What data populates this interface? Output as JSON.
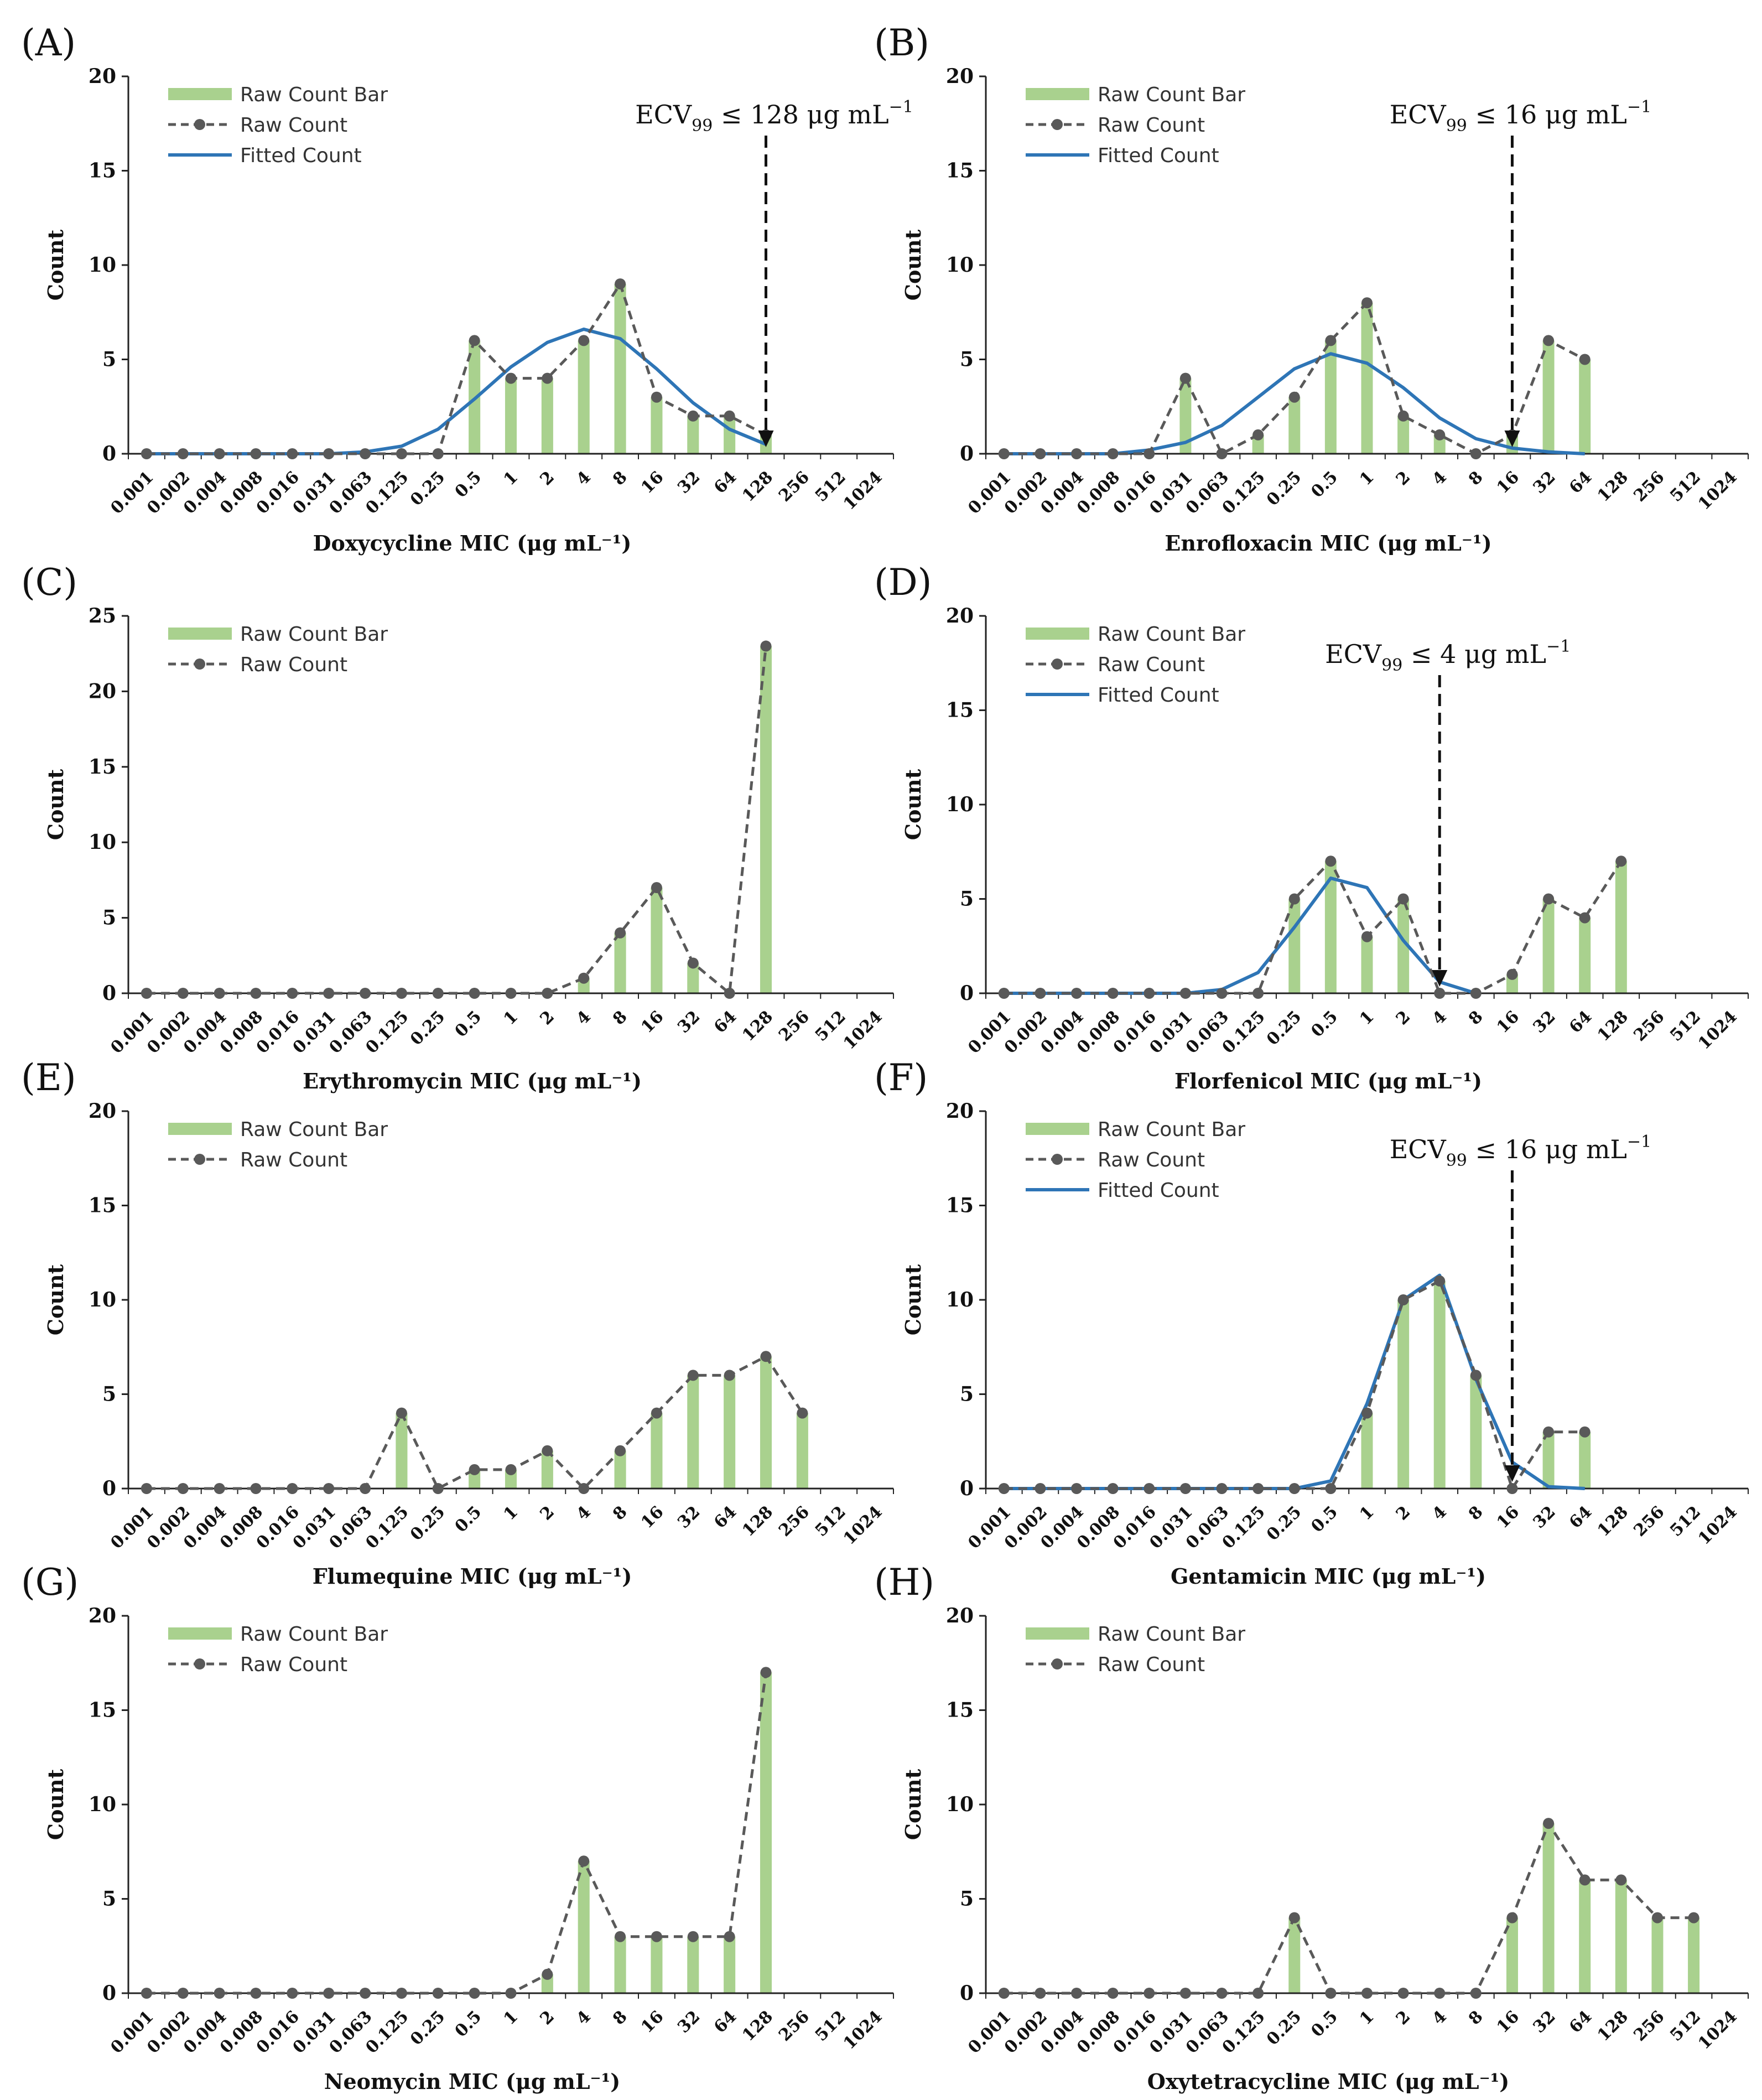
{
  "figure": {
    "x_categories": [
      "0.001",
      "0.002",
      "0.004",
      "0.008",
      "0.016",
      "0.031",
      "0.063",
      "0.125",
      "0.25",
      "0.5",
      "1",
      "2",
      "4",
      "8",
      "16",
      "32",
      "64",
      "128",
      "256",
      "512",
      "1024"
    ],
    "colors": {
      "bar": "#a9d18e",
      "raw": "#595959",
      "fitted": "#2e75b6",
      "axis": "#222222"
    }
  },
  "chart_data": [
    {
      "type": "bar",
      "panel_label": "(A)",
      "xlabel": "Doxycycline MIC (μg mL⁻¹)",
      "ylabel": "Count",
      "ylim": [
        0,
        20
      ],
      "yticks": [
        0,
        5,
        10,
        15,
        20
      ],
      "legend": [
        "Raw Count Bar",
        "Raw Count",
        "Fitted Count"
      ],
      "bar_values": [
        0,
        0,
        0,
        0,
        0,
        0,
        0,
        0,
        0,
        6,
        4,
        4,
        6,
        9,
        3,
        2,
        2,
        1,
        null,
        null,
        null
      ],
      "raw_count": [
        0,
        0,
        0,
        0,
        0,
        0,
        0,
        0,
        0,
        6,
        4,
        4,
        6,
        9,
        3,
        2,
        2,
        1,
        null,
        null,
        null
      ],
      "fitted_count": [
        0,
        0,
        0,
        0,
        0,
        0,
        0.1,
        0.4,
        1.3,
        2.9,
        4.6,
        5.9,
        6.6,
        6.1,
        4.5,
        2.7,
        1.3,
        0.5,
        null,
        null,
        null
      ],
      "ecv": {
        "prefix": "ECV",
        "sub": "99",
        "rel": " ≤ 128 μg mL",
        "sup": "−1",
        "category_index": 17,
        "value": 128
      }
    },
    {
      "type": "bar",
      "panel_label": "(B)",
      "xlabel": "Enrofloxacin MIC (μg mL⁻¹)",
      "ylabel": "Count",
      "ylim": [
        0,
        20
      ],
      "yticks": [
        0,
        5,
        10,
        15,
        20
      ],
      "legend": [
        "Raw Count Bar",
        "Raw Count",
        "Fitted Count"
      ],
      "bar_values": [
        0,
        0,
        0,
        0,
        0,
        4,
        0,
        1,
        3,
        6,
        8,
        2,
        1,
        0,
        1,
        6,
        5,
        null,
        null,
        null,
        null
      ],
      "raw_count": [
        0,
        0,
        0,
        0,
        0,
        4,
        0,
        1,
        3,
        6,
        8,
        2,
        1,
        0,
        1,
        6,
        5,
        null,
        null,
        null,
        null
      ],
      "fitted_count": [
        0,
        0,
        0,
        0,
        0.2,
        0.6,
        1.5,
        3,
        4.5,
        5.3,
        4.8,
        3.5,
        1.9,
        0.8,
        0.3,
        0.1,
        0,
        null,
        null,
        null,
        null
      ],
      "ecv": {
        "prefix": "ECV",
        "sub": "99",
        "rel": " ≤ 16 μg mL",
        "sup": "−1",
        "category_index": 14,
        "value": 16
      }
    },
    {
      "type": "bar",
      "panel_label": "(C)",
      "xlabel": "Erythromycin MIC (μg mL⁻¹)",
      "ylabel": "Count",
      "ylim": [
        0,
        25
      ],
      "yticks": [
        0,
        5,
        10,
        15,
        20,
        25
      ],
      "legend": [
        "Raw Count Bar",
        "Raw Count"
      ],
      "bar_values": [
        0,
        0,
        0,
        0,
        0,
        0,
        0,
        0,
        0,
        0,
        0,
        0,
        1,
        4,
        7,
        2,
        0,
        23,
        null,
        null,
        null
      ],
      "raw_count": [
        0,
        0,
        0,
        0,
        0,
        0,
        0,
        0,
        0,
        0,
        0,
        0,
        1,
        4,
        7,
        2,
        0,
        23,
        null,
        null,
        null
      ],
      "fitted_count": null,
      "ecv": null
    },
    {
      "type": "bar",
      "panel_label": "(D)",
      "xlabel": "Florfenicol MIC (μg mL⁻¹)",
      "ylabel": "Count",
      "ylim": [
        0,
        20
      ],
      "yticks": [
        0,
        5,
        10,
        15,
        20
      ],
      "legend": [
        "Raw Count Bar",
        "Raw Count",
        "Fitted Count"
      ],
      "bar_values": [
        0,
        0,
        0,
        0,
        0,
        0,
        0,
        0,
        5,
        7,
        3,
        5,
        0,
        0,
        1,
        5,
        4,
        7,
        null,
        null,
        null
      ],
      "raw_count": [
        0,
        0,
        0,
        0,
        0,
        0,
        0,
        0,
        5,
        7,
        3,
        5,
        0,
        0,
        1,
        5,
        4,
        7,
        null,
        null,
        null
      ],
      "fitted_count": [
        0,
        0,
        0,
        0,
        0,
        0,
        0.2,
        1.1,
        3.5,
        6.1,
        5.6,
        2.8,
        0.6,
        0,
        null,
        null,
        null,
        null,
        null,
        null,
        null
      ],
      "ecv": {
        "prefix": "ECV",
        "sub": "99",
        "rel": " ≤ 4 μg mL",
        "sup": "−1",
        "category_index": 12,
        "value": 4
      }
    },
    {
      "type": "bar",
      "panel_label": "(E)",
      "xlabel": "Flumequine MIC (μg mL⁻¹)",
      "ylabel": "Count",
      "ylim": [
        0,
        20
      ],
      "yticks": [
        0,
        5,
        10,
        15,
        20
      ],
      "legend": [
        "Raw Count Bar",
        "Raw Count"
      ],
      "bar_values": [
        0,
        0,
        0,
        0,
        0,
        0,
        0,
        4,
        0,
        1,
        1,
        2,
        0,
        2,
        4,
        6,
        6,
        7,
        4,
        null,
        null
      ],
      "raw_count": [
        0,
        0,
        0,
        0,
        0,
        0,
        0,
        4,
        0,
        1,
        1,
        2,
        0,
        2,
        4,
        6,
        6,
        7,
        4,
        null,
        null
      ],
      "fitted_count": null,
      "ecv": null
    },
    {
      "type": "bar",
      "panel_label": "(F)",
      "xlabel": "Gentamicin MIC (μg mL⁻¹)",
      "ylabel": "Count",
      "ylim": [
        0,
        20
      ],
      "yticks": [
        0,
        5,
        10,
        15,
        20
      ],
      "legend": [
        "Raw Count Bar",
        "Raw Count",
        "Fitted Count"
      ],
      "bar_values": [
        0,
        0,
        0,
        0,
        0,
        0,
        0,
        0,
        0,
        0,
        4,
        10,
        11,
        6,
        0,
        3,
        3,
        null,
        null,
        null,
        null
      ],
      "raw_count": [
        0,
        0,
        0,
        0,
        0,
        0,
        0,
        0,
        0,
        0,
        4,
        10,
        11,
        6,
        0,
        3,
        3,
        null,
        null,
        null,
        null
      ],
      "fitted_count": [
        0,
        0,
        0,
        0,
        0,
        0,
        0,
        0,
        0,
        0.4,
        4.5,
        10,
        11.3,
        5.8,
        1.4,
        0.1,
        0,
        null,
        null,
        null,
        null
      ],
      "ecv": {
        "prefix": "ECV",
        "sub": "99",
        "rel": " ≤ 16 μg mL",
        "sup": "−1",
        "category_index": 14,
        "value": 16
      }
    },
    {
      "type": "bar",
      "panel_label": "(G)",
      "xlabel": "Neomycin MIC (μg mL⁻¹)",
      "ylabel": "Count",
      "ylim": [
        0,
        20
      ],
      "yticks": [
        0,
        5,
        10,
        15,
        20
      ],
      "legend": [
        "Raw Count Bar",
        "Raw Count"
      ],
      "bar_values": [
        0,
        0,
        0,
        0,
        0,
        0,
        0,
        0,
        0,
        0,
        0,
        1,
        7,
        3,
        3,
        3,
        3,
        17,
        null,
        null,
        null
      ],
      "raw_count": [
        0,
        0,
        0,
        0,
        0,
        0,
        0,
        0,
        0,
        0,
        0,
        1,
        7,
        3,
        3,
        3,
        3,
        17,
        null,
        null,
        null
      ],
      "fitted_count": null,
      "ecv": null
    },
    {
      "type": "bar",
      "panel_label": "(H)",
      "xlabel": "Oxytetracycline MIC (μg mL⁻¹)",
      "ylabel": "Count",
      "ylim": [
        0,
        20
      ],
      "yticks": [
        0,
        5,
        10,
        15,
        20
      ],
      "legend": [
        "Raw Count Bar",
        "Raw Count"
      ],
      "bar_values": [
        0,
        0,
        0,
        0,
        0,
        0,
        0,
        0,
        4,
        0,
        0,
        0,
        0,
        0,
        4,
        9,
        6,
        6,
        4,
        4,
        null
      ],
      "raw_count": [
        0,
        0,
        0,
        0,
        0,
        0,
        0,
        0,
        4,
        0,
        0,
        0,
        0,
        0,
        4,
        9,
        6,
        6,
        4,
        4,
        null
      ],
      "fitted_count": null,
      "ecv": null
    }
  ]
}
